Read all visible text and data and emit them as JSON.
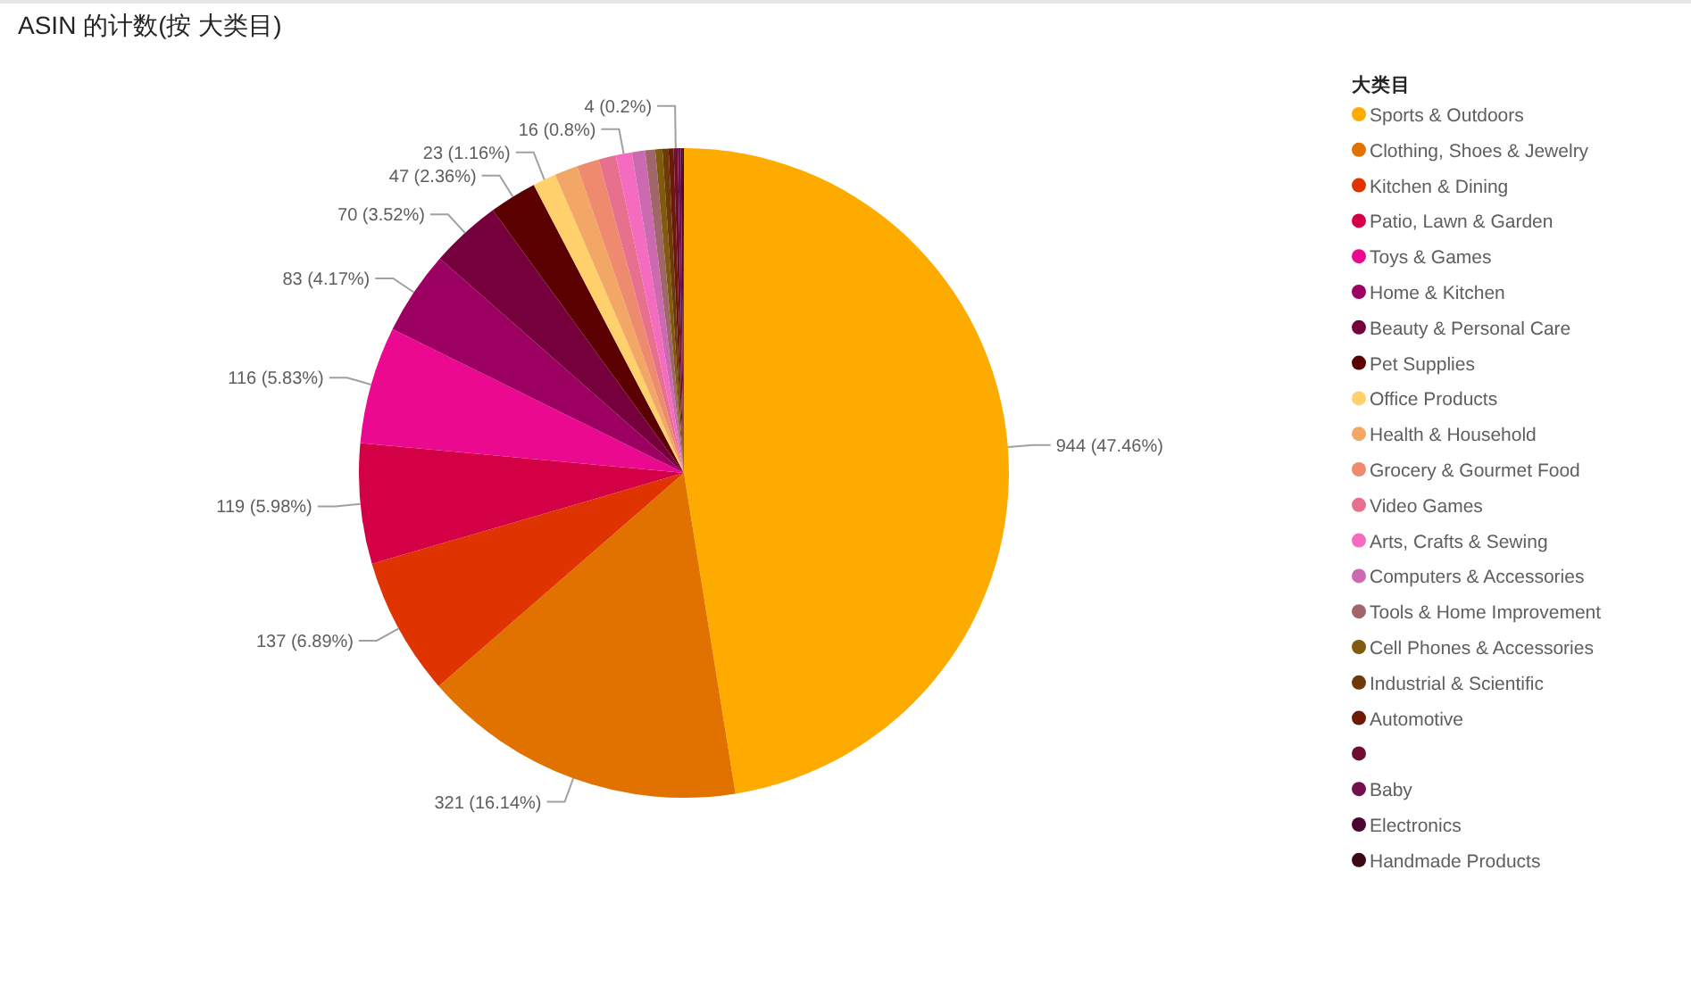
{
  "chart_data": {
    "type": "pie",
    "title": "ASIN 的计数(按 大类目)",
    "legend_title": "大类目",
    "legend": "right",
    "categories": [
      "Sports & Outdoors",
      "Clothing, Shoes & Jewelry",
      "Kitchen & Dining",
      "Patio, Lawn & Garden",
      "Toys & Games",
      "Home & Kitchen",
      "Beauty & Personal Care",
      "Pet Supplies",
      "Office Products",
      "Health & Household",
      "Grocery & Gourmet Food",
      "Video Games",
      "Arts, Crafts & Sewing",
      "Computers & Accessories",
      "Tools & Home Improvement",
      "Cell Phones & Accessories",
      "Industrial & Scientific",
      "Automotive",
      null,
      "Baby",
      "Electronics",
      "Handmade Products"
    ],
    "values": [
      944,
      321,
      137,
      119,
      116,
      83,
      70,
      47,
      23,
      23,
      22,
      17,
      16,
      13,
      10,
      7,
      6,
      5,
      4,
      3,
      2,
      1
    ],
    "value_labels": [
      "944 (47.46%)",
      "321 (16.14%)",
      "137 (6.89%)",
      "119 (5.98%)",
      "116 (5.83%)",
      "83 (4.17%)",
      "70 (3.52%)",
      "47 (2.36%)",
      "23 (1.16%)",
      null,
      null,
      null,
      "16 (0.8%)",
      null,
      null,
      null,
      null,
      null,
      "4 (0.2%)",
      null,
      null,
      null
    ],
    "colors": [
      "#feab00",
      "#e27200",
      "#e03302",
      "#d40046",
      "#eb0a8f",
      "#9c0060",
      "#75003c",
      "#5a0000",
      "#ffd06b",
      "#f2a766",
      "#ee8a6e",
      "#e8708f",
      "#f56bc0",
      "#cb6ab0",
      "#a0676a",
      "#7f5a0f",
      "#6e3a08",
      "#6b1a0a",
      "#6e0f30",
      "#70104f",
      "#4a0530",
      "#3a0a14"
    ]
  }
}
